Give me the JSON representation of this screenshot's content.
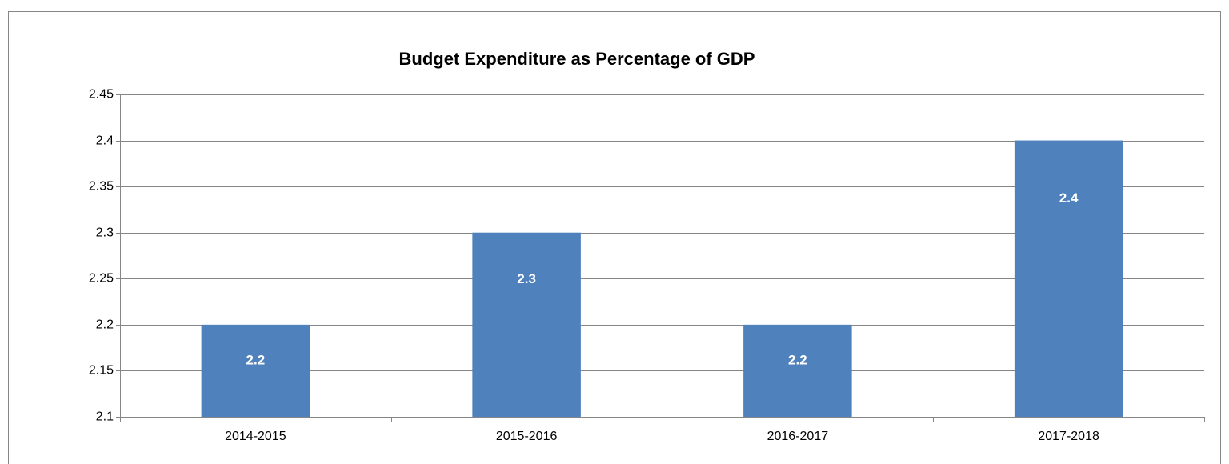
{
  "chart_data": {
    "type": "bar",
    "title": "Budget Expenditure as Percentage of GDP",
    "categories": [
      "2014-2015",
      "2015-2016",
      "2016-2017",
      "2017-2018"
    ],
    "values": [
      2.2,
      2.3,
      2.2,
      2.4
    ],
    "color": "#4f81bd",
    "ylim": [
      2.1,
      2.45
    ],
    "yticks": [
      2.1,
      2.15,
      2.2,
      2.25,
      2.3,
      2.35,
      2.4,
      2.45
    ],
    "grid": true
  }
}
